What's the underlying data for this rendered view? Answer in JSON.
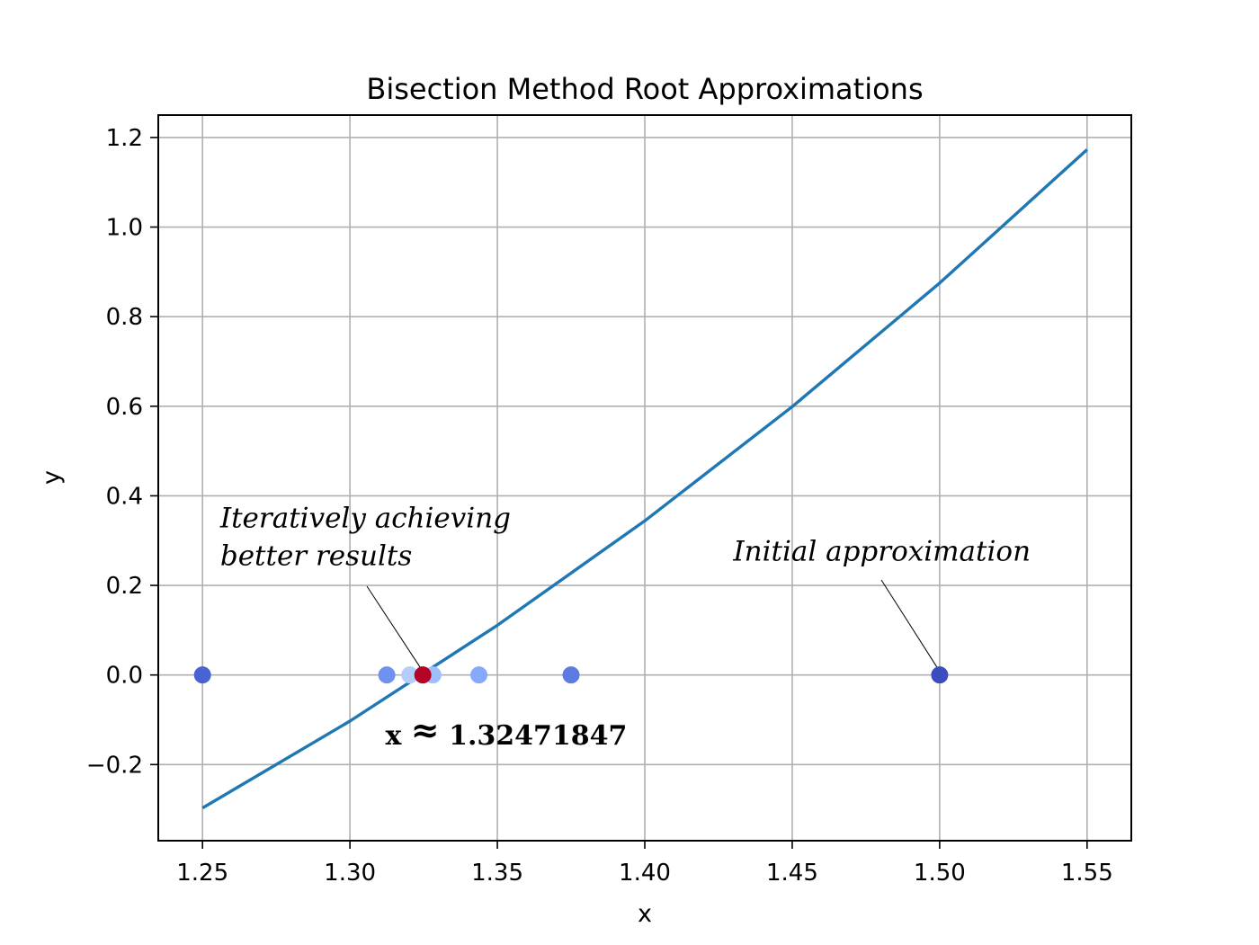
{
  "chart_data": {
    "type": "line",
    "title": "Bisection Method Root Approximations",
    "xlabel": "x",
    "ylabel": "y",
    "xlim": [
      1.235,
      1.565
    ],
    "ylim": [
      -0.37,
      1.25
    ],
    "grid": true,
    "x_ticks": [
      1.25,
      1.3,
      1.35,
      1.4,
      1.45,
      1.5,
      1.55
    ],
    "x_tick_labels": [
      "1.25",
      "1.30",
      "1.35",
      "1.40",
      "1.45",
      "1.50",
      "1.55"
    ],
    "y_ticks": [
      -0.2,
      0.0,
      0.2,
      0.4,
      0.6,
      0.8,
      1.0,
      1.2
    ],
    "y_tick_labels": [
      "−0.2",
      "0.0",
      "0.2",
      "0.4",
      "0.6",
      "0.8",
      "1.0",
      "1.2"
    ],
    "line": {
      "color": "#1f77b4",
      "x": [
        1.25,
        1.3,
        1.35,
        1.4,
        1.45,
        1.5,
        1.55
      ],
      "y": [
        -0.297,
        -0.103,
        0.111,
        0.344,
        0.599,
        0.875,
        1.173
      ]
    },
    "scatter": {
      "points": [
        {
          "x": 1.5,
          "y": 0.0,
          "color": "#3b4cc0"
        },
        {
          "x": 1.25,
          "y": 0.0,
          "color": "#4a63d3"
        },
        {
          "x": 1.375,
          "y": 0.0,
          "color": "#5b7be1"
        },
        {
          "x": 1.3125,
          "y": 0.0,
          "color": "#6f92f0"
        },
        {
          "x": 1.34375,
          "y": 0.0,
          "color": "#86a9fc"
        },
        {
          "x": 1.328125,
          "y": 0.0,
          "color": "#9fbefe"
        },
        {
          "x": 1.3203125,
          "y": 0.0,
          "color": "#b5cdfa"
        },
        {
          "x": 1.32471847,
          "y": 0.0,
          "color": "#b40426"
        }
      ]
    },
    "annotations": [
      {
        "id": "initial",
        "lines": [
          "Initial approximation"
        ],
        "text_x": 1.43,
        "text_y": 0.255,
        "point_x": 1.5,
        "point_y": 0.0
      },
      {
        "id": "iterative",
        "lines": [
          "Iteratively achieving",
          "better results"
        ],
        "text_x": 1.256,
        "text_y": 0.33,
        "point_x": 1.32471847,
        "point_y": 0.0
      }
    ],
    "result_label": {
      "prefix": "x",
      "approx_symbol": "≈",
      "value": "1.32471847",
      "x": 1.312,
      "y": -0.155
    }
  }
}
